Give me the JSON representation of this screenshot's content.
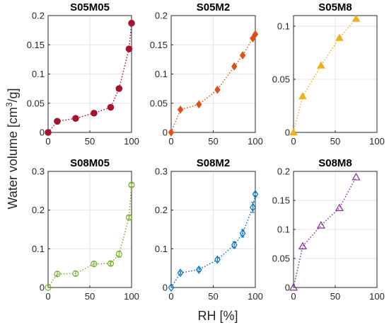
{
  "figure": {
    "xlabel": "RH [%]",
    "ylabel_prefix": "Water volume [cm",
    "ylabel_sup": "3",
    "ylabel_suffix": "/g]"
  },
  "chart_data": [
    {
      "type": "scatter",
      "title": "S05M05",
      "color": "#A2142F",
      "marker": "circle-filled",
      "xlim": [
        0,
        100
      ],
      "ylim": [
        0,
        0.2
      ],
      "xticks": [
        0,
        50,
        100
      ],
      "yticks": [
        0,
        0.05,
        0.1,
        0.15,
        0.2
      ],
      "ytick_labels": [
        "0",
        "0.05",
        "0.1",
        "0.15",
        "0.2"
      ],
      "grid": true,
      "series": [
        {
          "x": [
            0,
            11,
            33,
            55,
            75,
            85,
            97,
            100
          ],
          "y": [
            0.0,
            0.019,
            0.024,
            0.033,
            0.043,
            0.075,
            0.143,
            0.187
          ],
          "err": [
            0,
            0,
            0,
            0,
            0,
            0,
            0,
            0
          ]
        }
      ]
    },
    {
      "type": "scatter",
      "title": "S05M2",
      "color": "#D95319",
      "marker": "diamond-filled",
      "xlim": [
        0,
        100
      ],
      "ylim": [
        0,
        0.2
      ],
      "xticks": [
        0,
        50,
        100
      ],
      "yticks": [
        0,
        0.05,
        0.1,
        0.15,
        0.2
      ],
      "ytick_labels": [
        "0",
        "0.05",
        "0.1",
        "0.15",
        "0.2"
      ],
      "grid": true,
      "series": [
        {
          "x": [
            0,
            11,
            33,
            55,
            75,
            85,
            97,
            100
          ],
          "y": [
            0.0,
            0.039,
            0.048,
            0.073,
            0.113,
            0.132,
            0.161,
            0.168
          ],
          "err": [
            0,
            0,
            0,
            0,
            0,
            0,
            0,
            0
          ]
        }
      ]
    },
    {
      "type": "scatter",
      "title": "S05M8",
      "color": "#EDB120",
      "marker": "triangle-filled",
      "xlim": [
        0,
        100
      ],
      "ylim": [
        0,
        0.11
      ],
      "xticks": [
        0,
        50,
        100
      ],
      "yticks": [
        0,
        0.05,
        0.1
      ],
      "ytick_labels": [
        "0",
        "0.05",
        "0.1"
      ],
      "grid": true,
      "series": [
        {
          "x": [
            0,
            11,
            33,
            55,
            75
          ],
          "y": [
            0.0,
            0.034,
            0.063,
            0.089,
            0.107
          ],
          "err": [
            0,
            0,
            0,
            0,
            0
          ]
        }
      ]
    },
    {
      "type": "scatter",
      "title": "S08M05",
      "color": "#77AC30",
      "marker": "circle-open",
      "xlim": [
        0,
        100
      ],
      "ylim": [
        0,
        0.3
      ],
      "xticks": [
        0,
        50,
        100
      ],
      "yticks": [
        0,
        0.1,
        0.2,
        0.3
      ],
      "ytick_labels": [
        "0",
        "0.1",
        "0.2",
        "0.3"
      ],
      "grid": true,
      "series": [
        {
          "x": [
            0,
            11,
            33,
            55,
            75,
            85,
            97,
            100
          ],
          "y": [
            0.0,
            0.035,
            0.036,
            0.061,
            0.062,
            0.086,
            0.181,
            0.265
          ],
          "err": [
            0,
            0.006,
            0.006,
            0.006,
            0.005,
            0.008,
            0.004,
            0.004
          ]
        }
      ]
    },
    {
      "type": "scatter",
      "title": "S08M2",
      "color": "#0072BD",
      "marker": "diamond-open",
      "xlim": [
        0,
        100
      ],
      "ylim": [
        0,
        0.3
      ],
      "xticks": [
        0,
        50,
        100
      ],
      "yticks": [
        0,
        0.1,
        0.2,
        0.3
      ],
      "ytick_labels": [
        "0",
        "0.1",
        "0.2",
        "0.3"
      ],
      "grid": true,
      "series": [
        {
          "x": [
            0,
            11,
            33,
            55,
            75,
            85,
            97,
            100
          ],
          "y": [
            0.0,
            0.038,
            0.046,
            0.072,
            0.11,
            0.14,
            0.207,
            0.241
          ],
          "err": [
            0,
            0.004,
            0.005,
            0.005,
            0.008,
            0.01,
            0.013,
            0.004
          ]
        }
      ]
    },
    {
      "type": "scatter",
      "title": "S08M8",
      "color": "#7E2F8E",
      "marker": "triangle-open",
      "xlim": [
        0,
        100
      ],
      "ylim": [
        0,
        0.2
      ],
      "xticks": [
        0,
        50,
        100
      ],
      "yticks": [
        0,
        0.05,
        0.1,
        0.15,
        0.2
      ],
      "ytick_labels": [
        "0",
        "0.05",
        "0.1",
        "0.15",
        "0.2"
      ],
      "grid": true,
      "series": [
        {
          "x": [
            0,
            11,
            33,
            55,
            75
          ],
          "y": [
            0.0,
            0.071,
            0.107,
            0.137,
            0.19
          ],
          "err": [
            0,
            0,
            0,
            0,
            0
          ]
        }
      ]
    }
  ]
}
